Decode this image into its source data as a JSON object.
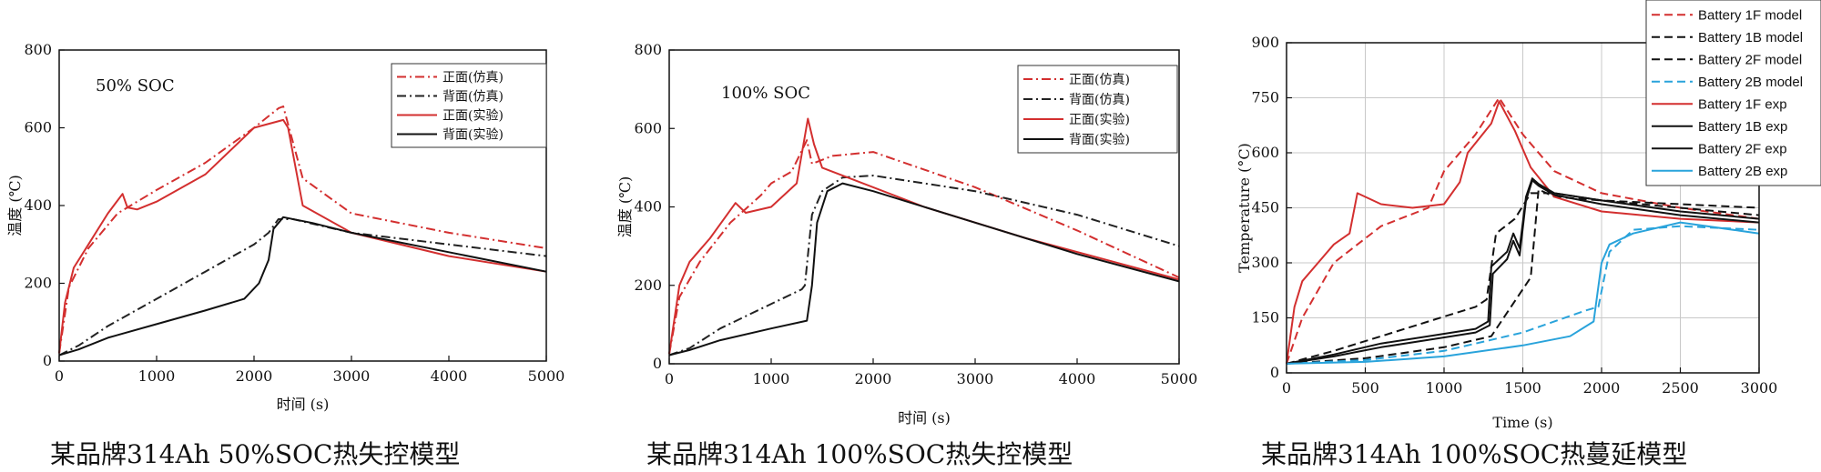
{
  "charts": [
    {
      "caption": "某品牌314Ah 50%SOC热失控模型",
      "chart_data": {
        "type": "line",
        "annotation": "50% SOC",
        "xlabel": "时间 (s)",
        "ylabel": "温度 (℃)",
        "xlim": [
          0,
          5000
        ],
        "ylim": [
          0,
          800
        ],
        "xticks": [
          0,
          1000,
          2000,
          3000,
          4000,
          5000
        ],
        "yticks": [
          0,
          200,
          400,
          600,
          800
        ],
        "legend_position": "top-right",
        "series": [
          {
            "name": "正面(仿真)",
            "color": "#d32f2f",
            "style": "dashdot",
            "x": [
              0,
              100,
              300,
              600,
              1000,
              1500,
              2000,
              2250,
              2300,
              2500,
              3000,
              4000,
              5000
            ],
            "y": [
              20,
              190,
              290,
              380,
              440,
              510,
              600,
              650,
              655,
              470,
              380,
              330,
              290
            ]
          },
          {
            "name": "背面(仿真)",
            "color": "#222222",
            "style": "dashdot",
            "x": [
              0,
              200,
              500,
              1000,
              1500,
              2000,
              2150,
              2250,
              2400,
              3000,
              4000,
              5000
            ],
            "y": [
              15,
              40,
              90,
              160,
              230,
              300,
              330,
              365,
              365,
              330,
              300,
              270
            ]
          },
          {
            "name": "正面(实验)",
            "color": "#d32f2f",
            "style": "solid",
            "x": [
              0,
              60,
              150,
              300,
              500,
              650,
              700,
              800,
              1000,
              1500,
              2000,
              2300,
              2350,
              2500,
              3000,
              4000,
              5000
            ],
            "y": [
              20,
              150,
              240,
              300,
              380,
              430,
              395,
              390,
              410,
              480,
              600,
              620,
              600,
              400,
              330,
              270,
              230
            ]
          },
          {
            "name": "背面(实验)",
            "color": "#111111",
            "style": "solid",
            "x": [
              0,
              200,
              500,
              1000,
              1500,
              1900,
              2050,
              2150,
              2200,
              2300,
              2600,
              3000,
              4000,
              5000
            ],
            "y": [
              15,
              30,
              60,
              95,
              130,
              160,
              200,
              260,
              340,
              370,
              355,
              330,
              280,
              230
            ]
          }
        ]
      }
    },
    {
      "caption": "某品牌314Ah 100%SOC热失控模型",
      "chart_data": {
        "type": "line",
        "annotation": "100% SOC",
        "xlabel": "时间 (s)",
        "ylabel": "温度 (℃)",
        "xlim": [
          0,
          5000
        ],
        "ylim": [
          0,
          800
        ],
        "xticks": [
          0,
          1000,
          2000,
          3000,
          4000,
          5000
        ],
        "yticks": [
          0,
          200,
          400,
          600,
          800
        ],
        "legend_position": "top-right",
        "series": [
          {
            "name": "正面(仿真)",
            "color": "#d32f2f",
            "style": "dashdot",
            "x": [
              0,
              100,
              300,
              600,
              900,
              1000,
              1200,
              1350,
              1400,
              1600,
              2000,
              3000,
              4000,
              5000
            ],
            "y": [
              25,
              170,
              260,
              360,
              430,
              460,
              490,
              570,
              510,
              530,
              540,
              450,
              340,
              220
            ]
          },
          {
            "name": "背面(仿真)",
            "color": "#222222",
            "style": "dashdot",
            "x": [
              0,
              200,
              500,
              900,
              1300,
              1330,
              1400,
              1500,
              1700,
              2000,
              3000,
              4000,
              5000
            ],
            "y": [
              22,
              40,
              90,
              140,
              190,
              200,
              380,
              440,
              475,
              480,
              440,
              380,
              300
            ]
          },
          {
            "name": "正面(实验)",
            "color": "#d32f2f",
            "style": "solid",
            "x": [
              0,
              100,
              200,
              400,
              650,
              750,
              1000,
              1250,
              1360,
              1420,
              1500,
              1800,
              2500,
              3500,
              4500,
              5000
            ],
            "y": [
              25,
              200,
              260,
              320,
              410,
              385,
              400,
              460,
              625,
              560,
              500,
              470,
              400,
              320,
              250,
              215
            ]
          },
          {
            "name": "背面(实验)",
            "color": "#111111",
            "style": "solid",
            "x": [
              0,
              200,
              500,
              1000,
              1350,
              1400,
              1450,
              1550,
              1700,
              2000,
              3000,
              4000,
              5000
            ],
            "y": [
              22,
              35,
              60,
              90,
              110,
              200,
              360,
              440,
              460,
              440,
              360,
              280,
              210
            ]
          }
        ]
      }
    },
    {
      "caption": "某品牌314Ah 100%SOC热蔓延模型",
      "chart_data": {
        "type": "line",
        "xlabel": "Time (s)",
        "ylabel": "Temperature (°C)",
        "xlim": [
          0,
          3000
        ],
        "ylim": [
          0,
          900
        ],
        "grid": true,
        "xticks": [
          0,
          500,
          1000,
          1500,
          2000,
          2500,
          3000
        ],
        "yticks": [
          0,
          150,
          300,
          450,
          600,
          750,
          900
        ],
        "legend_position": "top-right",
        "series": [
          {
            "name": "Battery 1F model",
            "color": "#d32f2f",
            "style": "dashed",
            "x": [
              0,
              100,
              300,
              600,
              900,
              1000,
              1200,
              1350,
              1500,
              1700,
              2000,
              2500,
              3000
            ],
            "y": [
              25,
              150,
              300,
              400,
              450,
              550,
              650,
              750,
              650,
              550,
              490,
              450,
              420
            ]
          },
          {
            "name": "Battery 1B model",
            "color": "#111111",
            "style": "dashed",
            "x": [
              0,
              300,
              600,
              900,
              1200,
              1270,
              1330,
              1450,
              1550,
              1700,
              2000,
              2500,
              3000
            ],
            "y": [
              25,
              60,
              100,
              140,
              180,
              200,
              380,
              420,
              490,
              490,
              470,
              460,
              450
            ]
          },
          {
            "name": "Battery 2F model",
            "color": "#111111",
            "style": "dashed",
            "x": [
              0,
              500,
              1000,
              1300,
              1550,
              1600,
              1700,
              2000,
              2500,
              3000
            ],
            "y": [
              25,
              40,
              70,
              100,
              260,
              500,
              480,
              470,
              450,
              430
            ]
          },
          {
            "name": "Battery 2B model",
            "color": "#29a3db",
            "style": "dashed",
            "x": [
              0,
              500,
              1000,
              1500,
              1900,
              1980,
              2050,
              2200,
              2500,
              3000
            ],
            "y": [
              25,
              35,
              60,
              110,
              170,
              180,
              330,
              390,
              400,
              390
            ]
          },
          {
            "name": "Battery 1F exp",
            "color": "#d32f2f",
            "style": "solid",
            "x": [
              0,
              50,
              100,
              200,
              300,
              400,
              450,
              600,
              800,
              1000,
              1100,
              1150,
              1300,
              1350,
              1450,
              1550,
              1700,
              2000,
              2500,
              3000
            ],
            "y": [
              25,
              180,
              250,
              300,
              350,
              380,
              490,
              460,
              450,
              460,
              520,
              600,
              680,
              740,
              660,
              560,
              480,
              440,
              420,
              410
            ]
          },
          {
            "name": "Battery 1B exp",
            "color": "#111111",
            "style": "solid",
            "x": [
              0,
              300,
              600,
              900,
              1200,
              1280,
              1300,
              1400,
              1440,
              1480,
              1520,
              1560,
              1600,
              1700,
              2000,
              2500,
              3000
            ],
            "y": [
              25,
              50,
              80,
              100,
              120,
              140,
              290,
              330,
              380,
              340,
              480,
              530,
              515,
              490,
              470,
              440,
              420
            ]
          },
          {
            "name": "Battery 2F exp",
            "color": "#111111",
            "style": "solid",
            "x": [
              0,
              300,
              600,
              900,
              1200,
              1290,
              1310,
              1400,
              1440,
              1480,
              1520,
              1560,
              1600,
              1700,
              2000,
              2500,
              3000
            ],
            "y": [
              25,
              45,
              70,
              90,
              110,
              130,
              270,
              310,
              360,
              320,
              470,
              525,
              510,
              485,
              460,
              430,
              410
            ]
          },
          {
            "name": "Battery 2B exp",
            "color": "#29a3db",
            "style": "solid",
            "x": [
              0,
              500,
              1000,
              1500,
              1800,
              1950,
              2000,
              2050,
              2200,
              2500,
              3000
            ],
            "y": [
              25,
              30,
              45,
              75,
              100,
              140,
              300,
              350,
              380,
              410,
              380
            ]
          }
        ]
      }
    }
  ]
}
